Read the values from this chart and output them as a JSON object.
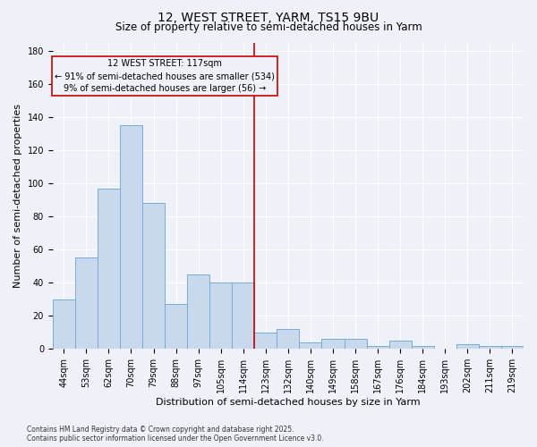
{
  "title": "12, WEST STREET, YARM, TS15 9BU",
  "subtitle": "Size of property relative to semi-detached houses in Yarm",
  "xlabel": "Distribution of semi-detached houses by size in Yarm",
  "ylabel": "Number of semi-detached properties",
  "footnote1": "Contains HM Land Registry data © Crown copyright and database right 2025.",
  "footnote2": "Contains public sector information licensed under the Open Government Licence v3.0.",
  "annotation_title": "12 WEST STREET: 117sqm",
  "annotation_line1": "← 91% of semi-detached houses are smaller (534)",
  "annotation_line2": "9% of semi-detached houses are larger (56) →",
  "bar_labels": [
    "44sqm",
    "53sqm",
    "62sqm",
    "70sqm",
    "79sqm",
    "88sqm",
    "97sqm",
    "105sqm",
    "114sqm",
    "123sqm",
    "132sqm",
    "140sqm",
    "149sqm",
    "158sqm",
    "167sqm",
    "176sqm",
    "184sqm",
    "193sqm",
    "202sqm",
    "211sqm",
    "219sqm"
  ],
  "bar_values": [
    30,
    55,
    97,
    135,
    88,
    27,
    45,
    40,
    40,
    10,
    12,
    4,
    6,
    6,
    2,
    5,
    2,
    0,
    3,
    2,
    2
  ],
  "bar_color": "#c8d9ee",
  "bar_edge_color": "#7aadd4",
  "red_line_index": 8,
  "red_line_color": "#cc0000",
  "annotation_box_color": "#cc0000",
  "ylim": [
    0,
    185
  ],
  "yticks": [
    0,
    20,
    40,
    60,
    80,
    100,
    120,
    140,
    160,
    180
  ],
  "background_color": "#eef2f8",
  "grid_color": "#ffffff",
  "title_fontsize": 10,
  "subtitle_fontsize": 8.5,
  "axis_label_fontsize": 8,
  "tick_fontsize": 7,
  "annotation_fontsize": 7,
  "footnote_fontsize": 5.5
}
